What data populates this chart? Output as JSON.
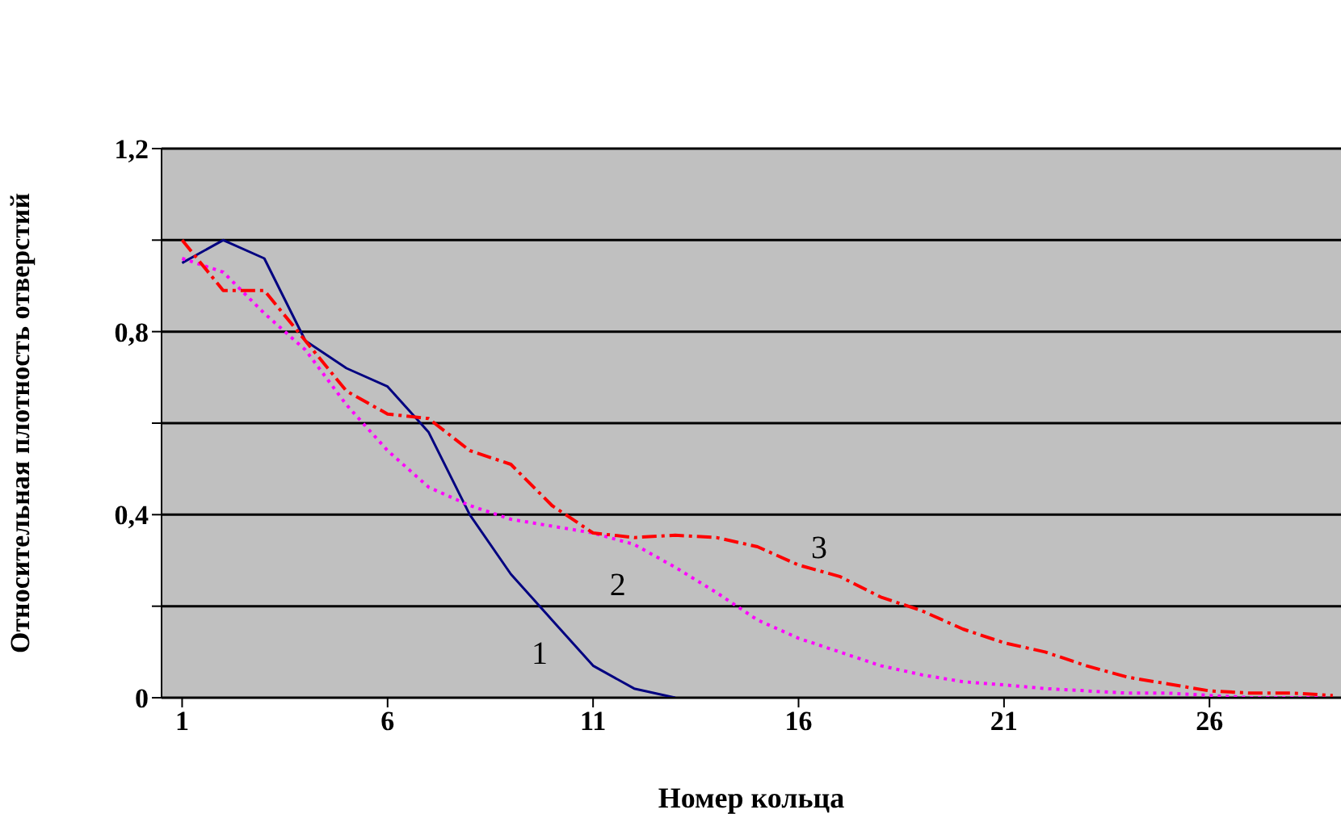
{
  "chart_data": {
    "type": "line",
    "xlabel": "Номер кольца",
    "ylabel": "Относительная плотность отверстий",
    "x": [
      1,
      2,
      3,
      4,
      5,
      6,
      7,
      8,
      9,
      10,
      11,
      12,
      13,
      14,
      15,
      16,
      17,
      18,
      19,
      20,
      21,
      22,
      23,
      24,
      25,
      26,
      27,
      28,
      29
    ],
    "xlim": [
      0.5,
      29.2
    ],
    "xticks": [
      1,
      6,
      11,
      16,
      21,
      26
    ],
    "ylim": [
      0,
      1.2
    ],
    "yticks": [
      {
        "value": 0,
        "label": "0"
      },
      {
        "value": 0.2,
        "label": null
      },
      {
        "value": 0.4,
        "label": "0,4"
      },
      {
        "value": 0.6,
        "label": null
      },
      {
        "value": 0.8,
        "label": "0,8"
      },
      {
        "value": 1.0,
        "label": null
      },
      {
        "value": 1.2,
        "label": "1,2"
      }
    ],
    "grid": "y",
    "legend": false,
    "marker": "none",
    "series": [
      {
        "name": "1",
        "color": "#000080",
        "line_style": "solid",
        "values": [
          0.95,
          1.0,
          0.96,
          0.78,
          0.72,
          0.68,
          0.58,
          0.4,
          0.27,
          0.17,
          0.07,
          0.02,
          0.0,
          null,
          null,
          null,
          null,
          null,
          null,
          null,
          null,
          null,
          null,
          null,
          null,
          null,
          null,
          null,
          null
        ]
      },
      {
        "name": "2",
        "color": "#ff00ff",
        "line_style": "dotted",
        "values": [
          0.96,
          0.93,
          0.84,
          0.76,
          0.64,
          0.54,
          0.46,
          0.42,
          0.39,
          0.375,
          0.36,
          0.335,
          0.285,
          0.23,
          0.17,
          0.13,
          0.1,
          0.07,
          0.05,
          0.035,
          0.028,
          0.02,
          0.015,
          0.01,
          0.01,
          0.005,
          0.0,
          0.0,
          0.0
        ]
      },
      {
        "name": "3",
        "color": "#ff0000",
        "line_style": "dashed",
        "values": [
          1.0,
          0.89,
          0.89,
          0.78,
          0.67,
          0.62,
          0.61,
          0.54,
          0.51,
          0.42,
          0.36,
          0.35,
          0.355,
          0.35,
          0.33,
          0.29,
          0.265,
          0.22,
          0.19,
          0.15,
          0.12,
          0.1,
          0.07,
          0.045,
          0.03,
          0.015,
          0.01,
          0.01,
          0.005
        ]
      }
    ]
  }
}
